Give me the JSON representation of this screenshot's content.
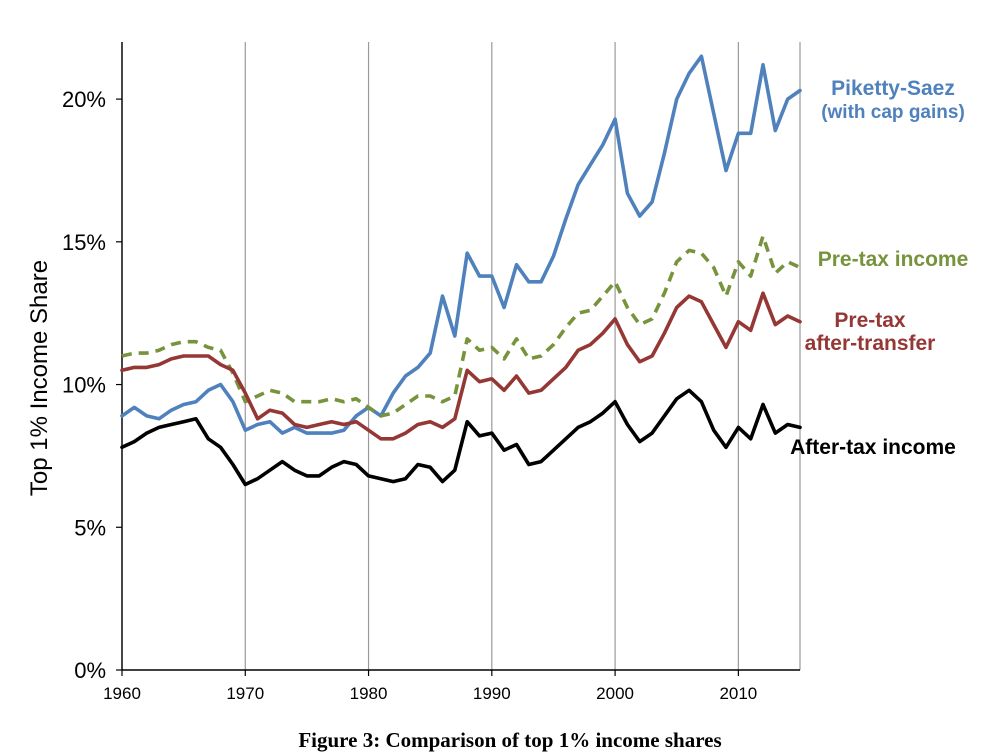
{
  "chart_data": {
    "type": "line",
    "title": "",
    "xlabel": "",
    "ylabel": "Top 1% Income Share",
    "xlim": [
      1960,
      2015
    ],
    "ylim": [
      0,
      22
    ],
    "x_ticks": [
      "1960",
      "1970",
      "1980",
      "1990",
      "2000",
      "2010"
    ],
    "y_ticks": [
      "0%",
      "5%",
      "10%",
      "15%",
      "20%"
    ],
    "grid": "vertical",
    "legend": "direct labels at line ends",
    "x": [
      1960,
      1961,
      1962,
      1963,
      1964,
      1965,
      1966,
      1967,
      1968,
      1969,
      1970,
      1971,
      1972,
      1973,
      1974,
      1975,
      1976,
      1977,
      1978,
      1979,
      1980,
      1981,
      1982,
      1983,
      1984,
      1985,
      1986,
      1987,
      1988,
      1989,
      1990,
      1991,
      1992,
      1993,
      1994,
      1995,
      1996,
      1997,
      1998,
      1999,
      2000,
      2001,
      2002,
      2003,
      2004,
      2005,
      2006,
      2007,
      2008,
      2009,
      2010,
      2011,
      2012,
      2013,
      2014,
      2015
    ],
    "series": [
      {
        "name": "Piketty-Saez",
        "name_line2": "(with cap gains)",
        "color": "#4f81bd",
        "dash": "solid",
        "values": [
          8.9,
          9.2,
          8.9,
          8.8,
          9.1,
          9.3,
          9.4,
          9.8,
          10.0,
          9.4,
          8.4,
          8.6,
          8.7,
          8.3,
          8.5,
          8.3,
          8.3,
          8.3,
          8.4,
          8.9,
          9.2,
          8.9,
          9.7,
          10.3,
          10.6,
          11.1,
          13.1,
          11.7,
          14.6,
          13.8,
          13.8,
          12.7,
          14.2,
          13.6,
          13.6,
          14.5,
          15.8,
          17.0,
          17.7,
          18.4,
          19.3,
          16.7,
          15.9,
          16.4,
          18.1,
          20.0,
          20.9,
          21.5,
          19.5,
          17.5,
          18.8,
          18.8,
          21.2,
          18.9,
          20.0,
          20.3
        ]
      },
      {
        "name": "Pre-tax income",
        "color": "#77933c",
        "dash": "dashed",
        "values": [
          11.0,
          11.1,
          11.1,
          11.2,
          11.4,
          11.5,
          11.5,
          11.3,
          11.2,
          10.4,
          9.4,
          9.6,
          9.8,
          9.7,
          9.4,
          9.4,
          9.4,
          9.5,
          9.4,
          9.5,
          9.2,
          8.9,
          9.0,
          9.3,
          9.6,
          9.6,
          9.4,
          9.6,
          11.6,
          11.2,
          11.3,
          10.9,
          11.6,
          10.9,
          11.0,
          11.4,
          12.0,
          12.5,
          12.6,
          13.1,
          13.6,
          12.7,
          12.1,
          12.3,
          13.2,
          14.3,
          14.7,
          14.6,
          14.1,
          13.1,
          14.3,
          13.8,
          15.2,
          13.9,
          14.3,
          14.1
        ]
      },
      {
        "name": "Pre-tax",
        "name_line2": "after-transfer",
        "color": "#953735",
        "dash": "solid",
        "values": [
          10.5,
          10.6,
          10.6,
          10.7,
          10.9,
          11.0,
          11.0,
          11.0,
          10.7,
          10.5,
          9.7,
          8.8,
          9.1,
          9.0,
          8.6,
          8.5,
          8.6,
          8.7,
          8.6,
          8.7,
          8.4,
          8.1,
          8.1,
          8.3,
          8.6,
          8.7,
          8.5,
          8.8,
          10.5,
          10.1,
          10.2,
          9.8,
          10.3,
          9.7,
          9.8,
          10.2,
          10.6,
          11.2,
          11.4,
          11.8,
          12.3,
          11.4,
          10.8,
          11.0,
          11.8,
          12.7,
          13.1,
          12.9,
          12.1,
          11.3,
          12.2,
          11.9,
          13.2,
          12.1,
          12.4,
          12.2
        ]
      },
      {
        "name": "After-tax income",
        "color": "#000000",
        "dash": "solid",
        "values": [
          7.8,
          8.0,
          8.3,
          8.5,
          8.6,
          8.7,
          8.8,
          8.1,
          7.8,
          7.2,
          6.5,
          6.7,
          7.0,
          7.3,
          7.0,
          6.8,
          6.8,
          7.1,
          7.3,
          7.2,
          6.8,
          6.7,
          6.6,
          6.7,
          7.2,
          7.1,
          6.6,
          7.0,
          8.7,
          8.2,
          8.3,
          7.7,
          7.9,
          7.2,
          7.3,
          7.7,
          8.1,
          8.5,
          8.7,
          9.0,
          9.4,
          8.6,
          8.0,
          8.3,
          8.9,
          9.5,
          9.8,
          9.4,
          8.4,
          7.8,
          8.5,
          8.1,
          9.3,
          8.3,
          8.6,
          8.5
        ]
      }
    ],
    "caption": "Figure 3: Comparison of top 1% income shares"
  }
}
